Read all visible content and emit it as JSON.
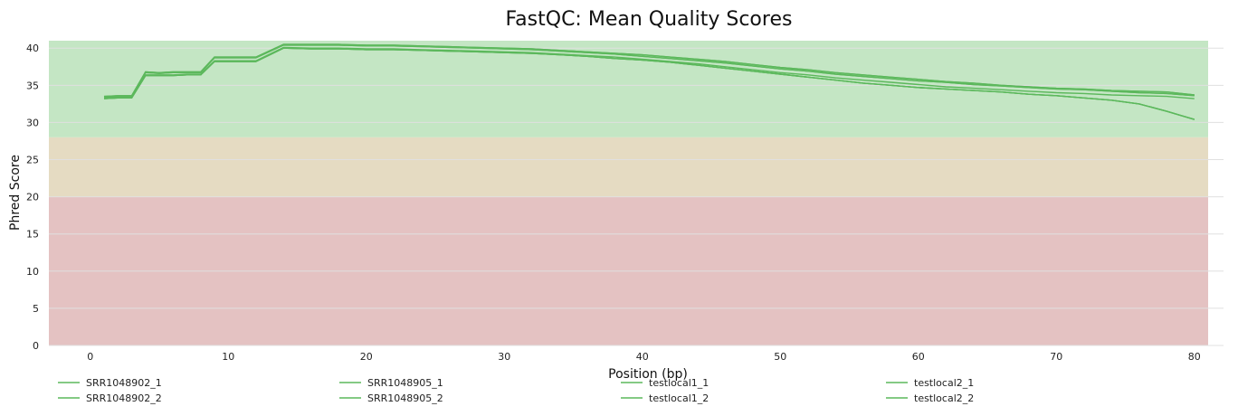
{
  "chart_data": {
    "type": "line",
    "title": "FastQC: Mean Quality Scores",
    "xlabel": "Position (bp)",
    "ylabel": "Phred Score",
    "xlim": [
      -3,
      81
    ],
    "ylim": [
      0,
      41
    ],
    "x_ticks": [
      0,
      10,
      20,
      30,
      40,
      50,
      60,
      70,
      80
    ],
    "y_ticks": [
      0,
      5,
      10,
      15,
      20,
      25,
      30,
      35,
      40
    ],
    "grid": true,
    "legend_position": "bottom",
    "quality_bands": [
      {
        "from": 28,
        "to": 41,
        "color": "#c4e6c4"
      },
      {
        "from": 20,
        "to": 28,
        "color": "#e5dbc2"
      },
      {
        "from": 0,
        "to": 20,
        "color": "#e4c2c2"
      }
    ],
    "line_color": "#5cb85c",
    "x": [
      1,
      2,
      3,
      4,
      5,
      6,
      7,
      8,
      9,
      10,
      11,
      12,
      14,
      16,
      18,
      20,
      22,
      24,
      26,
      28,
      30,
      32,
      34,
      36,
      38,
      40,
      42,
      44,
      46,
      48,
      50,
      52,
      54,
      56,
      58,
      60,
      62,
      64,
      66,
      68,
      70,
      72,
      74,
      76,
      78,
      80
    ],
    "series": [
      {
        "name": "SRR1048902_1",
        "values": [
          33.5,
          33.6,
          33.6,
          36.8,
          36.7,
          36.8,
          36.8,
          36.8,
          38.8,
          38.8,
          38.8,
          38.8,
          40.5,
          40.5,
          40.5,
          40.4,
          40.4,
          40.3,
          40.2,
          40.1,
          40.0,
          39.9,
          39.7,
          39.5,
          39.3,
          39.1,
          38.8,
          38.5,
          38.2,
          37.8,
          37.4,
          37.1,
          36.7,
          36.4,
          36.1,
          35.8,
          35.5,
          35.3,
          35.0,
          34.8,
          34.6,
          34.5,
          34.3,
          34.2,
          34.1,
          33.7
        ]
      },
      {
        "name": "SRR1048902_2",
        "values": [
          33.2,
          33.3,
          33.3,
          36.3,
          36.3,
          36.3,
          36.4,
          36.4,
          38.2,
          38.2,
          38.2,
          38.2,
          40.0,
          39.9,
          39.9,
          39.8,
          39.8,
          39.7,
          39.6,
          39.5,
          39.4,
          39.3,
          39.1,
          38.9,
          38.6,
          38.4,
          38.1,
          37.7,
          37.3,
          36.9,
          36.5,
          36.1,
          35.7,
          35.3,
          35.0,
          34.7,
          34.5,
          34.3,
          34.1,
          33.8,
          33.6,
          33.3,
          33.0,
          32.5,
          31.5,
          30.4
        ]
      },
      {
        "name": "SRR1048905_1",
        "values": [
          33.5,
          33.6,
          33.6,
          36.8,
          36.7,
          36.8,
          36.8,
          36.8,
          38.8,
          38.8,
          38.8,
          38.8,
          40.5,
          40.5,
          40.5,
          40.4,
          40.4,
          40.3,
          40.2,
          40.1,
          40.0,
          39.9,
          39.7,
          39.5,
          39.3,
          39.1,
          38.8,
          38.5,
          38.2,
          37.8,
          37.4,
          37.1,
          36.7,
          36.4,
          36.1,
          35.8,
          35.5,
          35.3,
          35.0,
          34.8,
          34.6,
          34.5,
          34.3,
          34.2,
          34.1,
          33.7
        ]
      },
      {
        "name": "SRR1048905_2",
        "values": [
          33.2,
          33.3,
          33.3,
          36.3,
          36.3,
          36.3,
          36.4,
          36.4,
          38.2,
          38.2,
          38.2,
          38.2,
          40.0,
          39.9,
          39.9,
          39.8,
          39.8,
          39.7,
          39.6,
          39.5,
          39.4,
          39.3,
          39.1,
          38.9,
          38.6,
          38.4,
          38.1,
          37.7,
          37.3,
          36.9,
          36.5,
          36.1,
          35.7,
          35.3,
          35.0,
          34.7,
          34.5,
          34.3,
          34.1,
          33.8,
          33.6,
          33.3,
          33.0,
          32.5,
          31.5,
          30.4
        ]
      },
      {
        "name": "testlocal1_1",
        "values": [
          33.4,
          33.5,
          33.5,
          36.7,
          36.6,
          36.7,
          36.7,
          36.7,
          38.7,
          38.7,
          38.7,
          38.7,
          40.4,
          40.4,
          40.4,
          40.3,
          40.3,
          40.2,
          40.1,
          40.0,
          39.9,
          39.8,
          39.6,
          39.4,
          39.2,
          38.9,
          38.6,
          38.3,
          38.0,
          37.6,
          37.2,
          36.9,
          36.5,
          36.2,
          35.9,
          35.6,
          35.4,
          35.1,
          34.9,
          34.7,
          34.5,
          34.4,
          34.2,
          34.0,
          33.9,
          33.6
        ]
      },
      {
        "name": "testlocal1_2",
        "values": [
          33.2,
          33.3,
          33.3,
          36.3,
          36.3,
          36.3,
          36.4,
          36.4,
          38.2,
          38.2,
          38.2,
          38.2,
          40.0,
          39.9,
          39.9,
          39.8,
          39.8,
          39.7,
          39.6,
          39.5,
          39.4,
          39.3,
          39.1,
          38.9,
          38.6,
          38.4,
          38.1,
          37.7,
          37.3,
          36.9,
          36.5,
          36.1,
          35.7,
          35.3,
          35.0,
          34.7,
          34.5,
          34.3,
          34.1,
          33.8,
          33.6,
          33.3,
          33.0,
          32.5,
          31.5,
          30.4
        ]
      },
      {
        "name": "testlocal2_1",
        "values": [
          33.4,
          33.5,
          33.5,
          36.7,
          36.6,
          36.7,
          36.7,
          36.7,
          38.7,
          38.7,
          38.7,
          38.7,
          40.4,
          40.4,
          40.4,
          40.3,
          40.3,
          40.2,
          40.1,
          40.0,
          39.9,
          39.8,
          39.6,
          39.4,
          39.2,
          38.9,
          38.6,
          38.3,
          38.0,
          37.6,
          37.2,
          36.9,
          36.5,
          36.2,
          35.9,
          35.6,
          35.4,
          35.1,
          34.9,
          34.7,
          34.5,
          34.4,
          34.2,
          34.0,
          33.9,
          33.6
        ]
      },
      {
        "name": "testlocal2_2",
        "values": [
          33.3,
          33.4,
          33.4,
          36.4,
          36.4,
          36.4,
          36.5,
          36.5,
          38.3,
          38.3,
          38.3,
          38.3,
          40.1,
          40.0,
          40.0,
          39.9,
          39.9,
          39.8,
          39.7,
          39.6,
          39.5,
          39.4,
          39.2,
          39.0,
          38.8,
          38.5,
          38.2,
          37.9,
          37.5,
          37.1,
          36.7,
          36.4,
          36.0,
          35.7,
          35.4,
          35.1,
          34.8,
          34.6,
          34.4,
          34.2,
          34.0,
          33.9,
          33.7,
          33.6,
          33.5,
          33.2
        ]
      }
    ]
  }
}
